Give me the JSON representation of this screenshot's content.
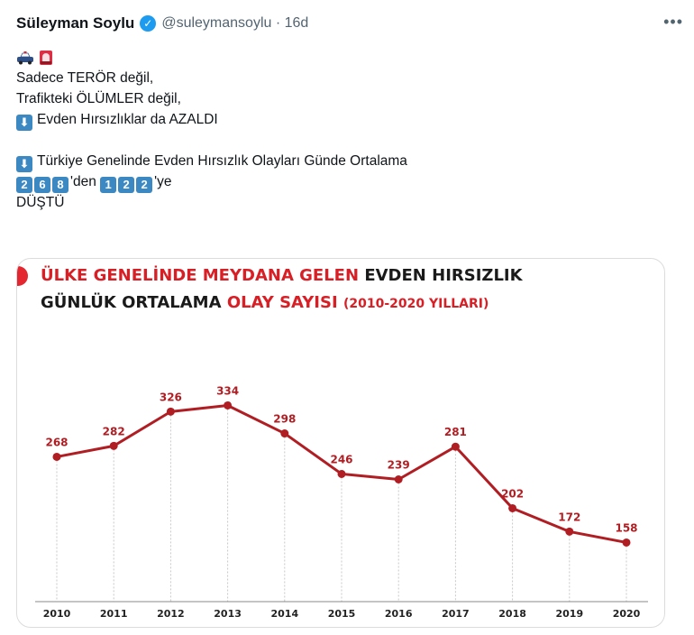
{
  "tweet": {
    "author_name": "Süleyman Soylu",
    "handle_time": "@suleymansoylu · 16d",
    "more_label": "•••",
    "emojis": [
      "police-car",
      "rotating-light"
    ],
    "lines": [
      "Sadece TERÖR değil,",
      "Trafikteki ÖLÜMLER değil,",
      "Evden Hırsızlıklar da AZALDI",
      "Türkiye Genelinde Evden Hırsızlık Olayları Günde Ortalama"
    ],
    "keycaps_from": [
      "2",
      "6",
      "8"
    ],
    "from_suffix": "'den",
    "keycaps_to": [
      "1",
      "2",
      "2"
    ],
    "to_suffix": "'ye",
    "last_line": "DÜŞTÜ"
  },
  "card": {
    "title_line1_red": "ÜLKE GENELİNDE MEYDANA GELEN",
    "title_line1_dark": "EVDEN HIRSIZLIK",
    "title_line2_dark": "GÜNLÜK ORTALAMA",
    "title_line2_red": "OLAY SAYISI",
    "title_line2_years": "(2010-2020 YILLARI)"
  },
  "chart_data": {
    "type": "line",
    "title": "ÜLKE GENELİNDE MEYDANA GELEN EVDEN HIRSIZLIK GÜNLÜK ORTALAMA OLAY SAYISI (2010-2020 YILLARI)",
    "xlabel": "",
    "ylabel": "",
    "categories": [
      "2010",
      "2011",
      "2012",
      "2013",
      "2014",
      "2015",
      "2016",
      "2017",
      "2018",
      "2019",
      "2020"
    ],
    "values": [
      268,
      282,
      326,
      334,
      298,
      246,
      239,
      281,
      202,
      172,
      158
    ],
    "ylim": [
      140,
      360
    ],
    "grid": "vertical dotted",
    "color": "#b01e23"
  }
}
